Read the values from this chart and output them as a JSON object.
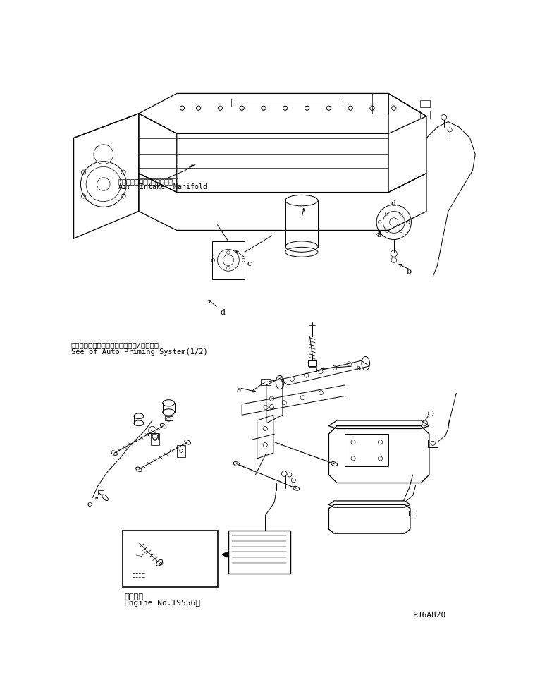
{
  "background_color": "#ffffff",
  "fig_width": 7.59,
  "fig_height": 9.88,
  "dpi": 100,
  "text_color": "#000000",
  "line_color": "#000000",
  "lw": 0.7,
  "labels": {
    "air_intake_jp": "エアーインテークマニホルド",
    "air_intake_en": "Air  Intake  Manifold",
    "auto_priming_jp": "オートプライミングシステム（　/　）参照",
    "auto_priming_en": "See of Auto Priming System(1/2)",
    "applicable_jp": "適用号機",
    "applicable_en": "Engine No.19556～",
    "part_number": "PJ6A820",
    "label_a": "a",
    "label_b": "b",
    "label_c": "c",
    "label_d": "d"
  }
}
